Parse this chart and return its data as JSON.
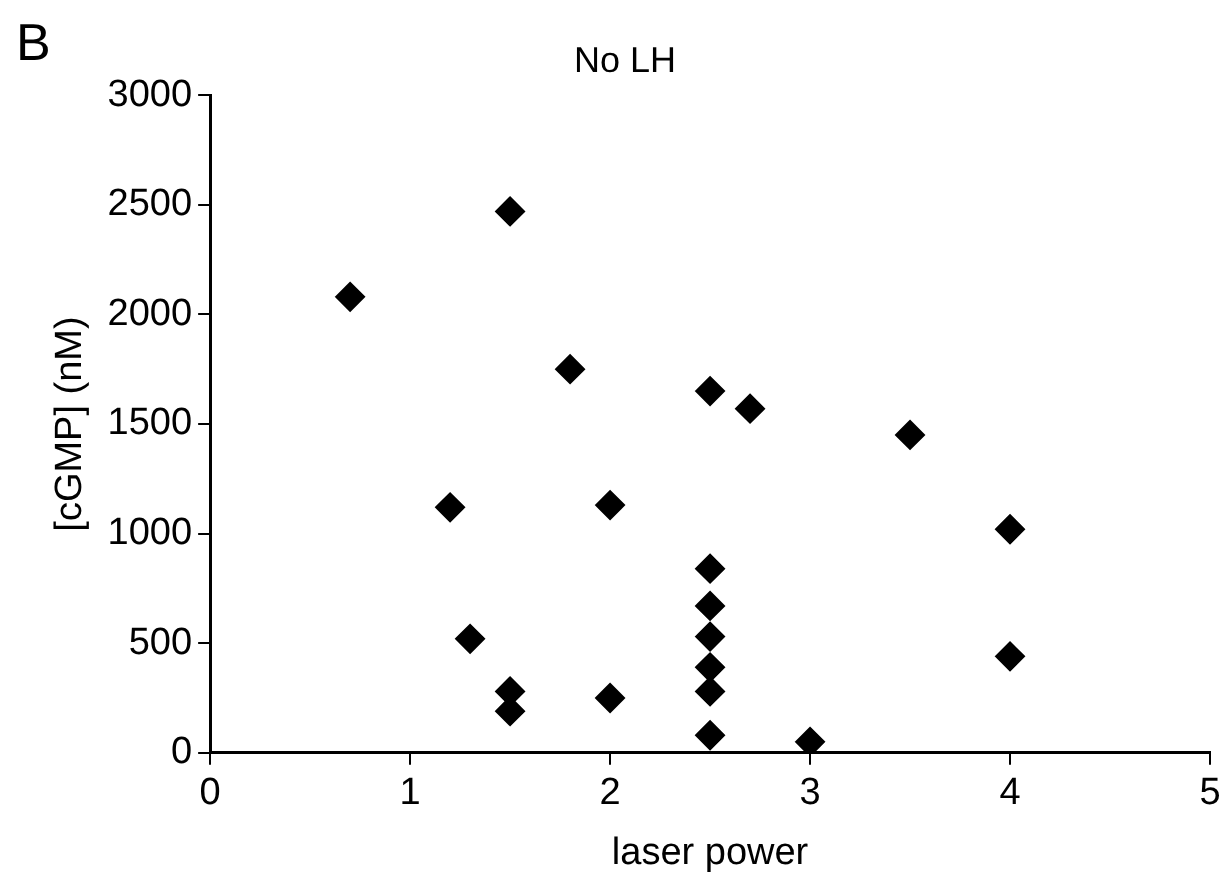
{
  "chart_data": {
    "type": "scatter",
    "title": "No LH",
    "xlabel": "laser power",
    "ylabel": "[cGMP] (nM)",
    "annotations": [
      "B"
    ],
    "x": [
      0.7,
      1.5,
      1.8,
      2.5,
      2.7,
      3.5,
      1.2,
      2.0,
      4.0,
      2.5,
      2.5,
      2.5,
      2.5,
      2.5,
      2.5,
      1.3,
      1.5,
      1.5,
      2.0,
      3.0,
      4.0
    ],
    "values": [
      2080,
      2470,
      1750,
      1650,
      1570,
      1450,
      1120,
      1130,
      1020,
      840,
      670,
      530,
      390,
      280,
      80,
      520,
      280,
      190,
      250,
      50,
      440
    ],
    "color": "#000000",
    "marker": "diamond",
    "xlim": [
      0,
      5
    ],
    "xticks": [
      0,
      1,
      2,
      3,
      4,
      5
    ],
    "ylim": [
      0,
      3000
    ],
    "yticks": [
      0,
      500,
      1000,
      1500,
      2000,
      2500,
      3000
    ],
    "grid": false,
    "legend": false
  }
}
